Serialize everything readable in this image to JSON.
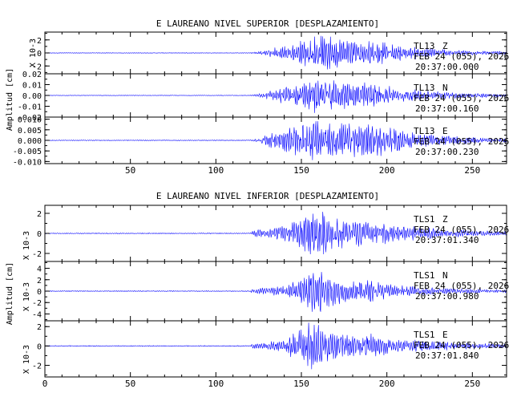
{
  "chart_data": [
    {
      "type": "line",
      "title": "E LAUREANO NIVEL SUPERIOR [DESPLAZAMIENTO]",
      "ylabel": "Amplitud [cm]",
      "xlim": [
        0,
        270
      ],
      "xticks": [
        "50",
        "100",
        "150",
        "200",
        "250"
      ],
      "xtick_values": [
        50,
        100,
        150,
        200,
        250
      ],
      "series_color": "#0000ff",
      "panels": [
        {
          "name": "TL13 Z",
          "station": "TL13",
          "component": "Z",
          "date": "FEB 24 (055), 2026",
          "time": "20:37:00.000",
          "multiplier": "X 10-3",
          "ylim": [
            -3.2,
            3.2
          ],
          "yticks": [
            "2",
            "0",
            "-2"
          ],
          "ytick_values": [
            2,
            0,
            -2
          ],
          "envelope": {
            "x": [
              0,
              120,
              125,
              130,
              140,
              150,
              155,
              160,
              165,
              170,
              180,
              190,
              200,
              210,
              220,
              230,
              240,
              250,
              260,
              270
            ],
            "amp": [
              0.05,
              0.05,
              0.25,
              0.6,
              1.2,
              1.9,
              2.6,
              3.0,
              2.8,
              2.4,
              2.2,
              2.1,
              1.7,
              1.2,
              0.9,
              0.7,
              0.5,
              0.4,
              0.3,
              0.25
            ]
          }
        },
        {
          "name": "TL13 N",
          "station": "TL13",
          "component": "N",
          "date": "FEB 24 (055), 2026",
          "time": "20:37:00.160",
          "multiplier": "",
          "ylim": [
            -0.02,
            0.02
          ],
          "yticks": [
            "0.02",
            "0.01",
            "0.00",
            "-0.01",
            "-0.02"
          ],
          "ytick_values": [
            0.02,
            0.01,
            0.0,
            -0.01,
            -0.02
          ],
          "envelope": {
            "x": [
              0,
              120,
              125,
              130,
              140,
              150,
              155,
              160,
              165,
              170,
              180,
              190,
              200,
              210,
              220,
              230,
              240,
              250,
              260,
              270
            ],
            "amp": [
              0.0003,
              0.0003,
              0.0015,
              0.004,
              0.008,
              0.013,
              0.016,
              0.018,
              0.017,
              0.014,
              0.012,
              0.013,
              0.01,
              0.007,
              0.005,
              0.004,
              0.003,
              0.0025,
              0.002,
              0.0015
            ]
          }
        },
        {
          "name": "TL13 E",
          "station": "TL13",
          "component": "E",
          "date": "FEB 24 (055), 2026",
          "time": "20:37:00.230",
          "multiplier": "",
          "ylim": [
            -0.011,
            0.011
          ],
          "yticks": [
            "0.010",
            "0.005",
            "0.000",
            "-0.005",
            "-0.010"
          ],
          "ytick_values": [
            0.01,
            0.005,
            0.0,
            -0.005,
            -0.01
          ],
          "envelope": {
            "x": [
              0,
              120,
              125,
              130,
              140,
              150,
              155,
              160,
              165,
              170,
              180,
              190,
              200,
              210,
              220,
              230,
              240,
              250,
              260,
              270
            ],
            "amp": [
              0.0002,
              0.0002,
              0.001,
              0.003,
              0.006,
              0.008,
              0.0095,
              0.01,
              0.0098,
              0.0092,
              0.0085,
              0.009,
              0.007,
              0.005,
              0.0035,
              0.0025,
              0.002,
              0.0015,
              0.0012,
              0.001
            ]
          }
        }
      ]
    },
    {
      "type": "line",
      "title": "E LAUREANO NIVEL INFERIOR [DESPLAZAMIENTO]",
      "ylabel": "Amplitud [cm]",
      "xlim": [
        0,
        270
      ],
      "xticks": [
        "0",
        "50",
        "100",
        "150",
        "200",
        "250"
      ],
      "xtick_values": [
        0,
        50,
        100,
        150,
        200,
        250
      ],
      "series_color": "#0000ff",
      "panels": [
        {
          "name": "TLS1 Z",
          "station": "TLS1",
          "component": "Z",
          "date": "FEB 24 (055), 2026",
          "time": "20:37:01.340",
          "multiplier": "X 10-3",
          "ylim": [
            -2.8,
            2.8
          ],
          "yticks": [
            "2",
            "0",
            "-2"
          ],
          "ytick_values": [
            2,
            0,
            -2
          ],
          "envelope": {
            "x": [
              0,
              120,
              122,
              130,
              140,
              150,
              155,
              160,
              165,
              170,
              180,
              190,
              200,
              210,
              220,
              230,
              240,
              250,
              260,
              270
            ],
            "amp": [
              0.05,
              0.05,
              0.4,
              0.5,
              0.8,
              1.6,
              2.4,
              2.6,
              2.0,
              1.6,
              1.3,
              1.5,
              1.0,
              0.8,
              0.7,
              0.5,
              0.4,
              0.3,
              0.25,
              0.2
            ]
          }
        },
        {
          "name": "TLS1 N",
          "station": "TLS1",
          "component": "N",
          "date": "FEB 24 (055), 2026",
          "time": "20:37:00.980",
          "multiplier": "X 10-3",
          "ylim": [
            -5.2,
            5.2
          ],
          "yticks": [
            "4",
            "2",
            "0",
            "-2",
            "-4"
          ],
          "ytick_values": [
            4,
            2,
            0,
            -2,
            -4
          ],
          "envelope": {
            "x": [
              0,
              120,
              122,
              130,
              140,
              150,
              155,
              160,
              165,
              170,
              180,
              190,
              200,
              210,
              220,
              230,
              240,
              250,
              260,
              270
            ],
            "amp": [
              0.08,
              0.08,
              0.6,
              0.7,
              1.0,
              2.5,
              4.2,
              4.8,
              3.0,
              2.4,
              1.8,
              2.0,
              1.4,
              1.0,
              0.8,
              0.6,
              0.5,
              0.4,
              0.3,
              0.3
            ]
          }
        },
        {
          "name": "TLS1 E",
          "station": "TLS1",
          "component": "E",
          "date": "FEB 24 (055), 2026",
          "time": "20:37:01.840",
          "multiplier": "X 10-3",
          "ylim": [
            -3.2,
            2.6
          ],
          "yticks": [
            "2",
            "0",
            "-2"
          ],
          "ytick_values": [
            2,
            0,
            -2
          ],
          "envelope": {
            "x": [
              0,
              120,
              122,
              130,
              140,
              150,
              155,
              160,
              165,
              170,
              180,
              190,
              200,
              210,
              220,
              230,
              240,
              250,
              260,
              270
            ],
            "amp": [
              0.05,
              0.05,
              0.3,
              0.4,
              0.7,
              2.0,
              2.5,
              2.3,
              1.8,
              1.5,
              1.2,
              1.3,
              0.9,
              0.7,
              0.6,
              0.5,
              0.4,
              0.3,
              0.25,
              0.2
            ]
          }
        }
      ]
    }
  ]
}
